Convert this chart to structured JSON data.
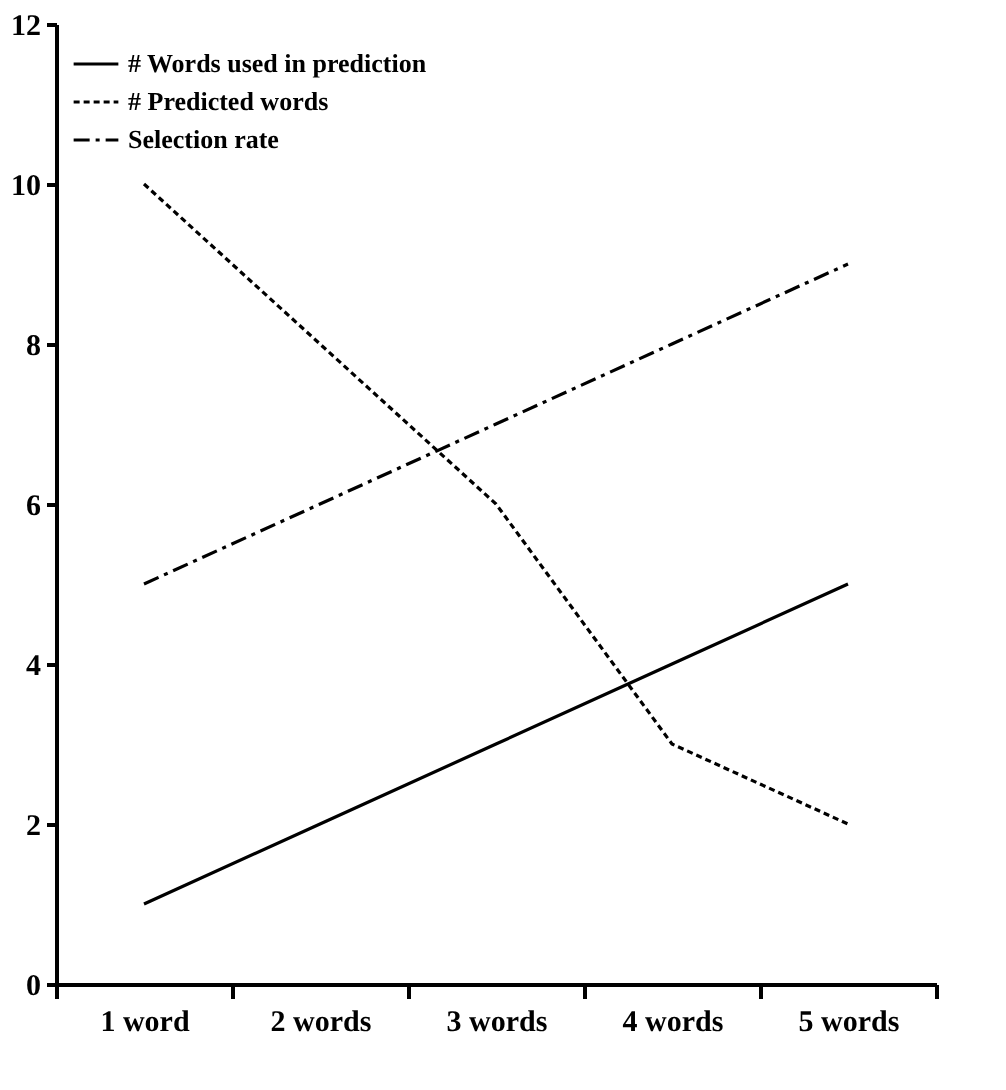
{
  "chart_data": {
    "type": "line",
    "categories": [
      "1 word",
      "2 words",
      "3 words",
      "4 words",
      "5 words"
    ],
    "series": [
      {
        "name": "# Words used in prediction",
        "color": "#000000",
        "line_style": "solid",
        "values": [
          1,
          2,
          3,
          4,
          5
        ]
      },
      {
        "name": "# Predicted words",
        "color": "#000000",
        "line_style": "dashed",
        "values": [
          10,
          8,
          6,
          3,
          2
        ]
      },
      {
        "name": "Selection rate",
        "color": "#000000",
        "line_style": "dashdot",
        "values": [
          5,
          6,
          7,
          8,
          9
        ]
      }
    ],
    "ylim": [
      0,
      12
    ],
    "yticks": [
      0,
      2,
      4,
      6,
      8,
      10,
      12
    ],
    "grid": false,
    "legend": "top left",
    "marker": "none"
  }
}
